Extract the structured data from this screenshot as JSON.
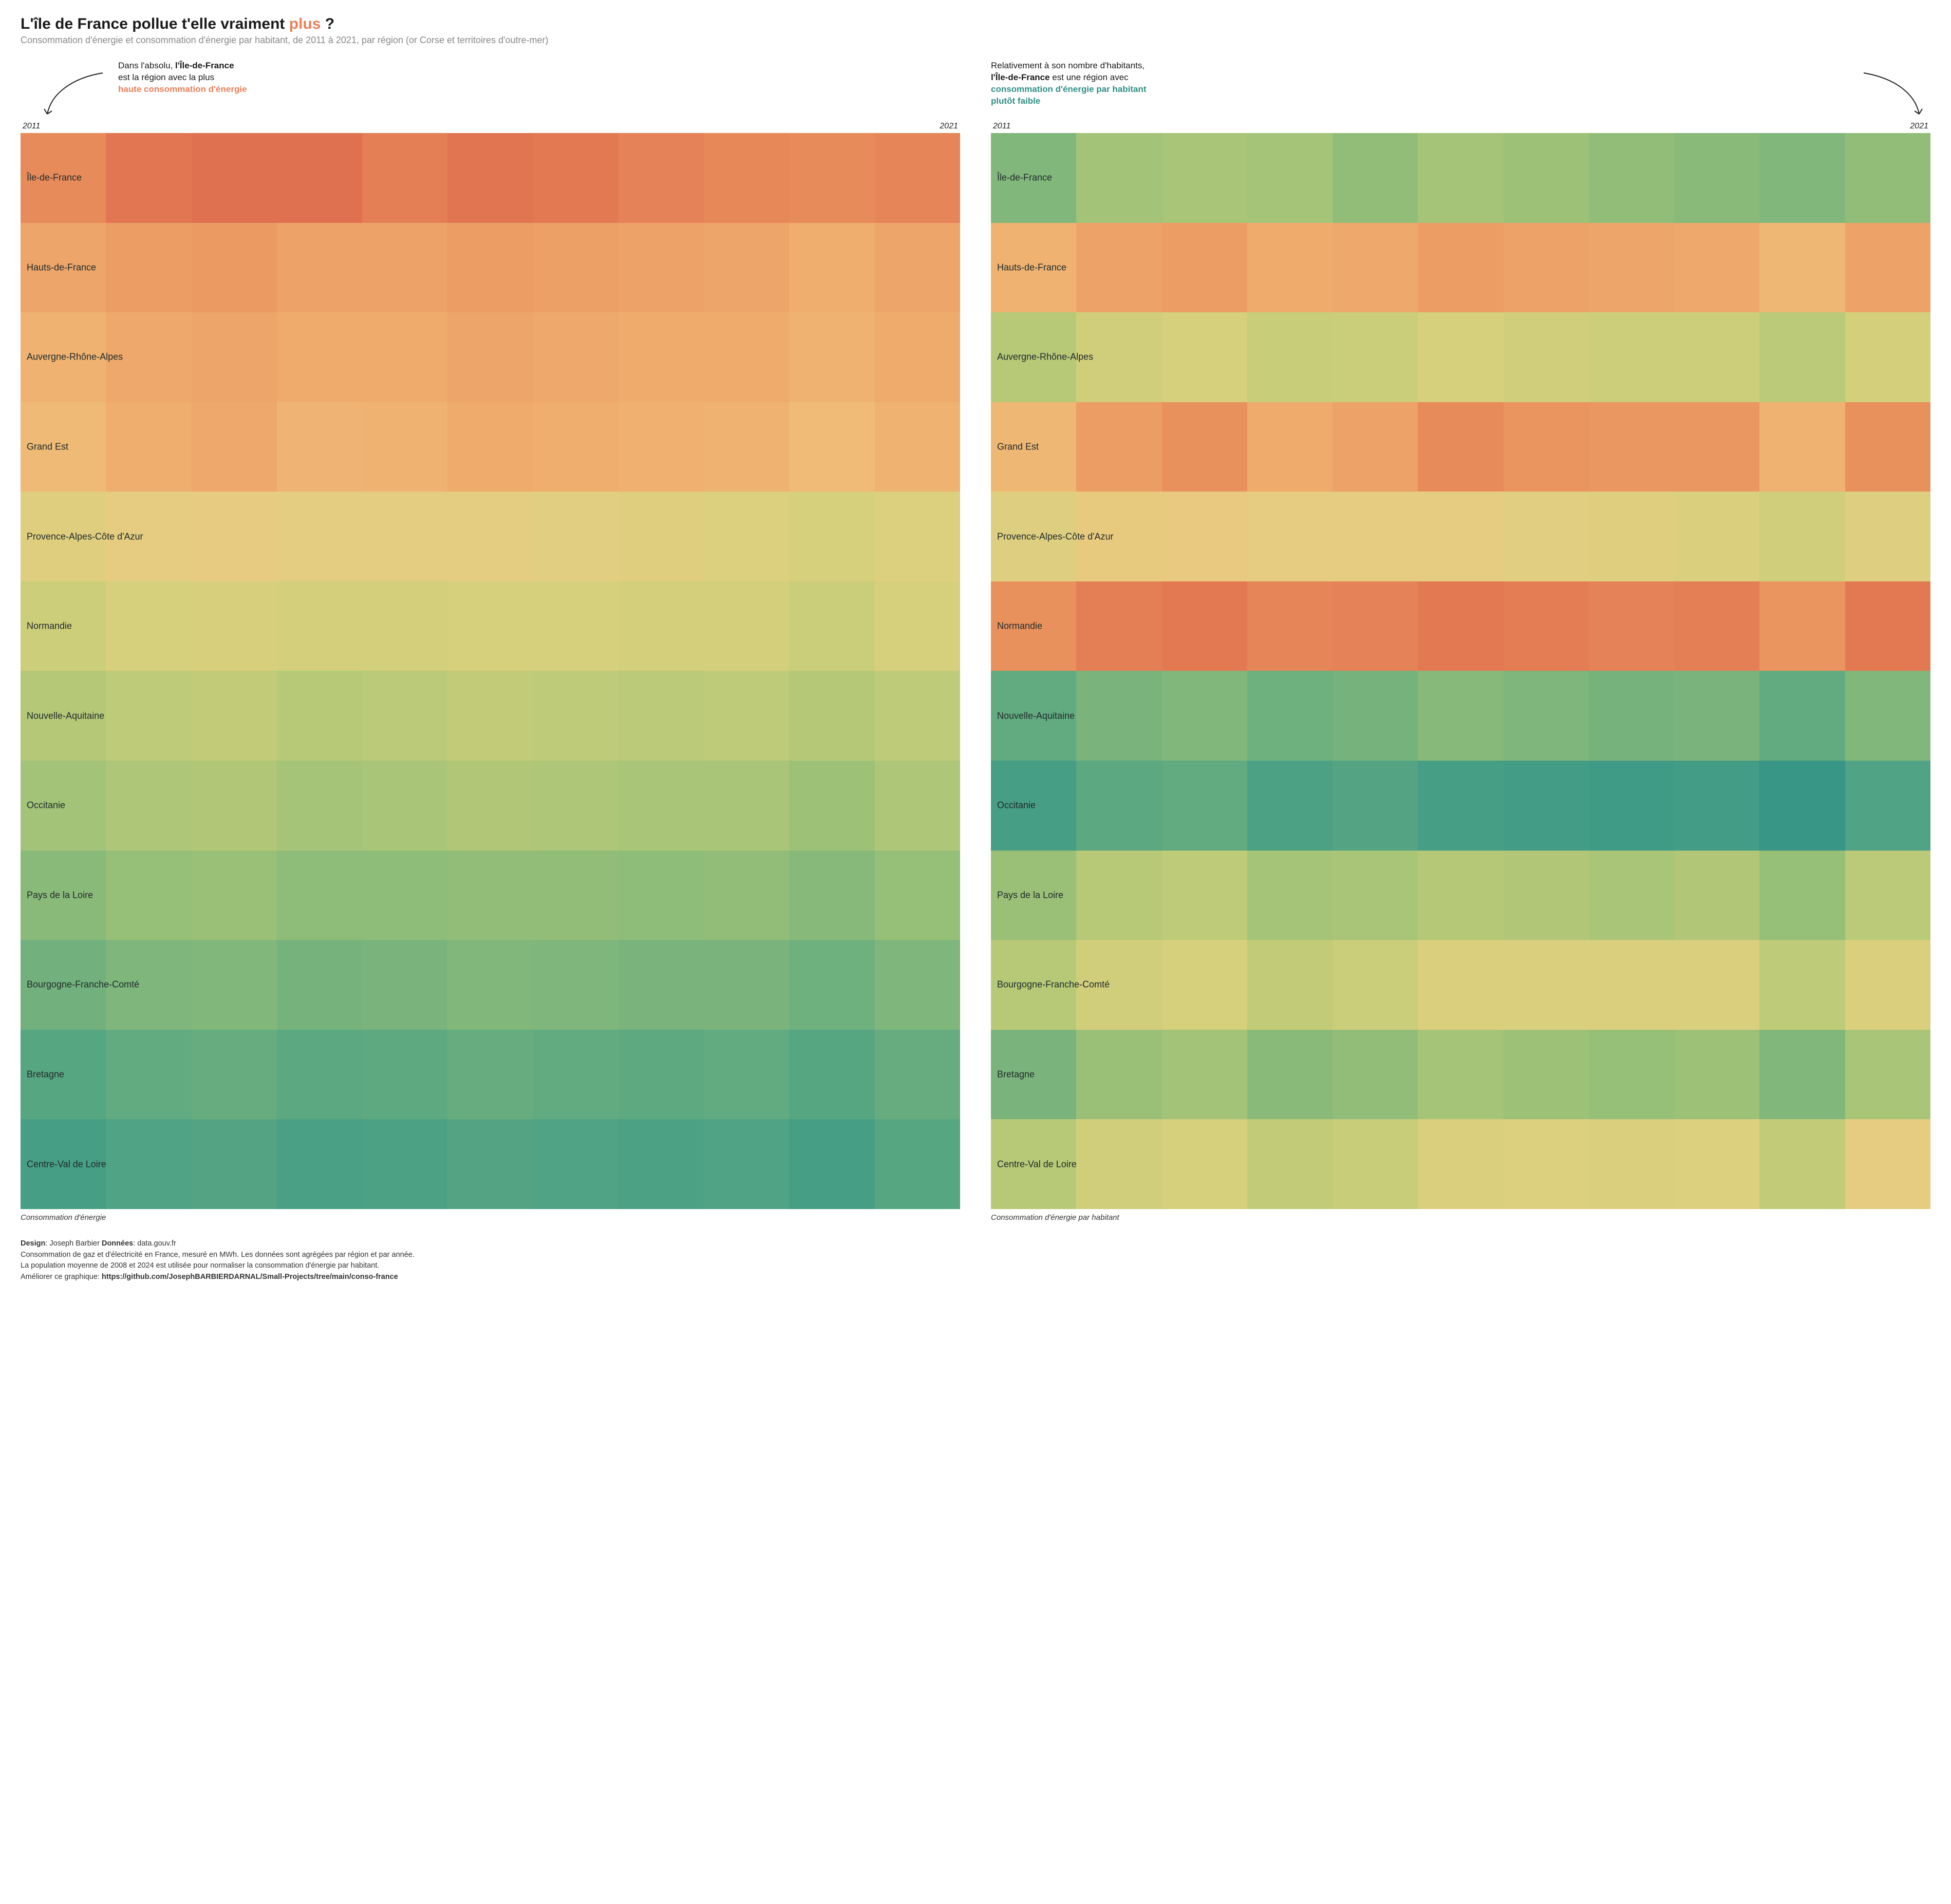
{
  "title_pre": "L'île de France pollue t'elle vraiment ",
  "title_accent": "plus",
  "title_post": " ?",
  "accent_color": "#e9805a",
  "subtitle": "Consommation d'énergie et consommation d'énergie par habitant, de 2011 à 2021, par région (or Corse et territoires d'outre-mer)",
  "annotation_left": {
    "line1_pre": "Dans l'absolu, ",
    "line1_bold": "l'Île-de-France",
    "line2": "est la région avec la plus",
    "line3_hl": "haute consommation d'énergie",
    "hl_color": "#e9805a"
  },
  "annotation_right": {
    "line1": "Relativement à son nombre d'habitants,",
    "line2_bold": "l'Île-de-France",
    "line2_post": " est une région avec",
    "line3_hl": "consommation d'énergie par habitant",
    "line4_hl": "plutôt faible",
    "hl_color": "#2f8f84"
  },
  "year_start": "2011",
  "year_end": "2021",
  "regions": [
    "Île-de-France",
    "Hauts-de-France",
    "Auvergne-Rhône-Alpes",
    "Grand Est",
    "Provence-Alpes-Côte d'Azur",
    "Normandie",
    "Nouvelle-Aquitaine",
    "Occitanie",
    "Pays de la Loire",
    "Bourgogne-Franche-Comté",
    "Bretagne",
    "Centre-Val de Loire"
  ],
  "n_years": 11,
  "colormap": [
    "#2b8e83",
    "#3a9887",
    "#4ea284",
    "#65ac7f",
    "#7eb67b",
    "#97bf78",
    "#afc777",
    "#c4cc78",
    "#d6cf7c",
    "#e3ce80",
    "#ebc87f",
    "#efbe79",
    "#efb070",
    "#ec9f65",
    "#e88d5b",
    "#e37a53",
    "#dd684e"
  ],
  "heatmap_left": {
    "caption": "Consommation d'énergie",
    "values": [
      [
        0.88,
        0.95,
        0.97,
        0.97,
        0.92,
        0.96,
        0.94,
        0.91,
        0.89,
        0.88,
        0.9
      ],
      [
        0.79,
        0.82,
        0.83,
        0.8,
        0.8,
        0.82,
        0.81,
        0.8,
        0.79,
        0.76,
        0.79
      ],
      [
        0.74,
        0.78,
        0.79,
        0.77,
        0.77,
        0.79,
        0.78,
        0.77,
        0.77,
        0.74,
        0.77
      ],
      [
        0.71,
        0.76,
        0.78,
        0.73,
        0.74,
        0.77,
        0.76,
        0.75,
        0.74,
        0.7,
        0.74
      ],
      [
        0.55,
        0.58,
        0.59,
        0.57,
        0.57,
        0.57,
        0.56,
        0.55,
        0.53,
        0.5,
        0.53
      ],
      [
        0.47,
        0.5,
        0.51,
        0.49,
        0.49,
        0.5,
        0.5,
        0.49,
        0.49,
        0.46,
        0.5
      ],
      [
        0.39,
        0.42,
        0.43,
        0.4,
        0.41,
        0.43,
        0.42,
        0.41,
        0.42,
        0.39,
        0.42
      ],
      [
        0.34,
        0.37,
        0.38,
        0.35,
        0.36,
        0.38,
        0.37,
        0.36,
        0.36,
        0.33,
        0.37
      ],
      [
        0.28,
        0.31,
        0.32,
        0.29,
        0.29,
        0.3,
        0.3,
        0.29,
        0.3,
        0.27,
        0.31
      ],
      [
        0.22,
        0.25,
        0.26,
        0.23,
        0.24,
        0.26,
        0.25,
        0.24,
        0.24,
        0.21,
        0.25
      ],
      [
        0.15,
        0.18,
        0.19,
        0.16,
        0.17,
        0.19,
        0.18,
        0.17,
        0.18,
        0.15,
        0.19
      ],
      [
        0.1,
        0.13,
        0.14,
        0.11,
        0.12,
        0.14,
        0.13,
        0.12,
        0.13,
        0.1,
        0.15
      ]
    ]
  },
  "heatmap_right": {
    "caption": "Consommation d'énergie par habitant",
    "values": [
      [
        0.26,
        0.34,
        0.36,
        0.35,
        0.3,
        0.35,
        0.33,
        0.3,
        0.28,
        0.26,
        0.3
      ],
      [
        0.74,
        0.8,
        0.82,
        0.77,
        0.78,
        0.82,
        0.8,
        0.79,
        0.78,
        0.72,
        0.8
      ],
      [
        0.4,
        0.48,
        0.5,
        0.45,
        0.46,
        0.5,
        0.48,
        0.47,
        0.47,
        0.41,
        0.49
      ],
      [
        0.72,
        0.82,
        0.86,
        0.77,
        0.8,
        0.88,
        0.85,
        0.84,
        0.84,
        0.74,
        0.86
      ],
      [
        0.54,
        0.6,
        0.61,
        0.58,
        0.58,
        0.58,
        0.56,
        0.55,
        0.52,
        0.48,
        0.54
      ],
      [
        0.86,
        0.92,
        0.94,
        0.9,
        0.91,
        0.94,
        0.93,
        0.91,
        0.92,
        0.85,
        0.94
      ],
      [
        0.18,
        0.24,
        0.26,
        0.21,
        0.23,
        0.27,
        0.25,
        0.23,
        0.24,
        0.18,
        0.26
      ],
      [
        0.1,
        0.16,
        0.18,
        0.12,
        0.14,
        0.1,
        0.09,
        0.08,
        0.09,
        0.05,
        0.13
      ],
      [
        0.32,
        0.4,
        0.42,
        0.35,
        0.36,
        0.39,
        0.38,
        0.36,
        0.38,
        0.31,
        0.41
      ],
      [
        0.4,
        0.48,
        0.5,
        0.43,
        0.46,
        0.52,
        0.52,
        0.52,
        0.52,
        0.42,
        0.52
      ],
      [
        0.24,
        0.32,
        0.34,
        0.28,
        0.3,
        0.35,
        0.33,
        0.31,
        0.33,
        0.26,
        0.36
      ],
      [
        0.4,
        0.48,
        0.5,
        0.43,
        0.45,
        0.52,
        0.53,
        0.52,
        0.53,
        0.43,
        0.58
      ]
    ]
  },
  "footer": {
    "design_label": "Design",
    "design_value": ": Joseph Barbier   ",
    "data_label": "Données",
    "data_value": ": data.gouv.fr",
    "line2": "Consommation de gaz et d'électricité en France, mesuré en MWh. Les données sont agrégées par région et par année.",
    "line3": "La population moyenne de 2008 et 2024 est utilisée pour normaliser la consommation d'énergie par habitant.",
    "line4_pre": "Améliorer ce graphique: ",
    "line4_bold": "https://github.com/JosephBARBIERDARNAL/Small-Projects/tree/main/conso-france"
  }
}
